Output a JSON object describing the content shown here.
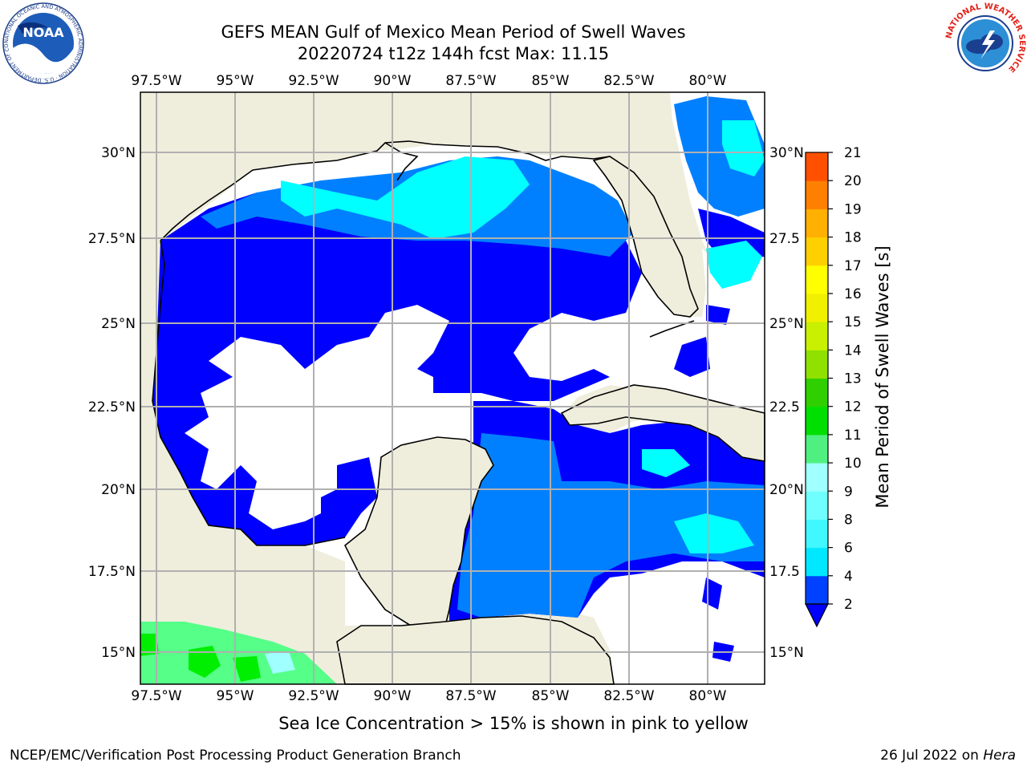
{
  "header": {
    "title_line1": "GEFS MEAN Gulf of Mexico Mean Period of Swell Waves",
    "title_line2": "20220724 t12z 144h fcst   Max: 11.15"
  },
  "logos": {
    "noaa_text": "NOAA",
    "noaa_ring": "NATIONAL OCEANIC AND ATMOSPHERIC ADMINISTRATION · U.S. DEPARTMENT OF COMMERCE",
    "nws_ring": "NATIONAL WEATHER SERVICE"
  },
  "map": {
    "lon_labels": [
      "97.5°W",
      "95°W",
      "92.5°W",
      "90°W",
      "87.5°W",
      "85°W",
      "82.5°W",
      "80°W"
    ],
    "lat_labels_left": [
      "30°N",
      "27.5°N",
      "25°N",
      "22.5°N",
      "20°N",
      "17.5°N",
      "15°N"
    ],
    "lat_labels_right": [
      "30°N",
      "27.5",
      "25°N",
      "22.5",
      "20°N",
      "17.5",
      "15°N"
    ]
  },
  "colorbar": {
    "label": "Mean Period of Swell Waves [s]",
    "ticks": [
      "2",
      "4",
      "6",
      "8",
      "9",
      "10",
      "11",
      "12",
      "13",
      "14",
      "15",
      "16",
      "17",
      "18",
      "19",
      "20",
      "21"
    ],
    "colors": [
      "#0040ff",
      "#00e8ff",
      "#40f8ff",
      "#70ffff",
      "#a0ffff",
      "#50f080",
      "#00e000",
      "#30d000",
      "#90e000",
      "#c8f000",
      "#f0f000",
      "#ffff00",
      "#ffd000",
      "#ffb000",
      "#ff8000",
      "#ff5000",
      "#ff2000",
      "#ff0000"
    ],
    "extend_color": "#0000ff"
  },
  "legend_colors": {
    "land": "#efeedd",
    "level_2_4": "#0000ff",
    "level_4_6": "#0080ff",
    "level_6_8": "#00ffff",
    "level_8_10": "#55ff88",
    "level_10_12": "#00ee00"
  },
  "note": "Sea Ice Concentration > 15% is shown in pink to yellow",
  "footer": {
    "left": "NCEP/EMC/Verification Post Processing Product Generation Branch",
    "right_prefix": "26 Jul 2022 on ",
    "right_italic": "Hera"
  }
}
